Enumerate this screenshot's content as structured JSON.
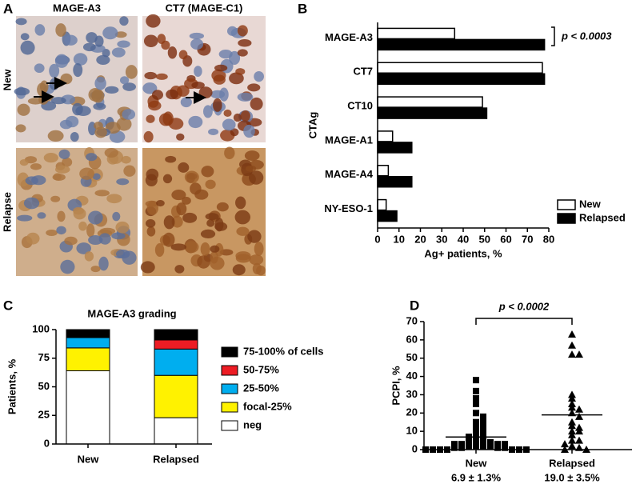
{
  "panel_labels": [
    "A",
    "B",
    "C",
    "D"
  ],
  "panel_a": {
    "columns": [
      "MAGE-A3",
      "CT7 (MAGE-C1)"
    ],
    "rows": [
      "New",
      "Relapse"
    ]
  },
  "chart_data": [
    {
      "type": "hbar",
      "categories": [
        "MAGE-A3",
        "CT7",
        "CT10",
        "MAGE-A1",
        "MAGE-A4",
        "NY-ESO-1"
      ],
      "series": [
        {
          "name": "New",
          "color": "#ffffff",
          "values": [
            36,
            77,
            49,
            7,
            5,
            4
          ]
        },
        {
          "name": "Relapsed",
          "color": "#000000",
          "values": [
            78,
            78,
            51,
            16,
            16,
            9
          ]
        }
      ],
      "xlim": [
        0,
        80
      ],
      "xticks": [
        0,
        10,
        20,
        30,
        40,
        50,
        60,
        70,
        80
      ],
      "x_label": "Ag+ patients, %",
      "y_label": "CTAg",
      "annotation": "p < 0.0003",
      "legend": "lower right"
    },
    {
      "type": "stacked_bar",
      "title": "MAGE-A3 grading",
      "categories": [
        "New",
        "Relapsed"
      ],
      "series": [
        {
          "name": "neg",
          "color": "#ffffff",
          "values": [
            64,
            23
          ]
        },
        {
          "name": "focal-25%",
          "color": "#fff200",
          "values": [
            20,
            37
          ]
        },
        {
          "name": "25-50%",
          "color": "#00aeef",
          "values": [
            9,
            23
          ]
        },
        {
          "name": "50-75%",
          "color": "#ed1c24",
          "values": [
            0,
            8
          ]
        },
        {
          "name": "75-100% of cells",
          "color": "#000000",
          "values": [
            7,
            9
          ]
        }
      ],
      "ylim": [
        0,
        100
      ],
      "yticks": [
        0,
        25,
        50,
        75,
        100
      ],
      "y_label": "Patients, %",
      "legend": "right"
    },
    {
      "type": "strip",
      "categories": [
        "New",
        "Relapsed"
      ],
      "category_notes": [
        "6.9 ± 1.3%",
        "19.0 ± 3.5%"
      ],
      "groups": [
        {
          "marker": "square",
          "color": "#000000",
          "values": [
            38,
            32,
            28,
            25,
            20,
            18,
            15,
            15,
            13,
            12,
            10,
            10,
            8,
            8,
            7,
            5,
            5,
            5,
            4,
            3,
            3,
            3,
            3,
            2,
            2,
            2,
            2,
            1,
            1,
            1,
            1,
            0,
            0,
            0,
            0,
            0,
            0,
            0
          ]
        },
        {
          "marker": "triangle",
          "color": "#000000",
          "values": [
            63,
            57,
            52,
            52,
            30,
            28,
            25,
            23,
            22,
            20,
            18,
            15,
            13,
            12,
            10,
            10,
            8,
            5,
            5,
            3,
            2,
            1,
            0,
            0
          ]
        }
      ],
      "means": [
        6.9,
        19.0
      ],
      "ylim": [
        0,
        70
      ],
      "yticks": [
        0,
        10,
        20,
        30,
        40,
        50,
        60,
        70
      ],
      "y_label": "PCPI, %",
      "annotation": "p < 0.0002"
    }
  ]
}
